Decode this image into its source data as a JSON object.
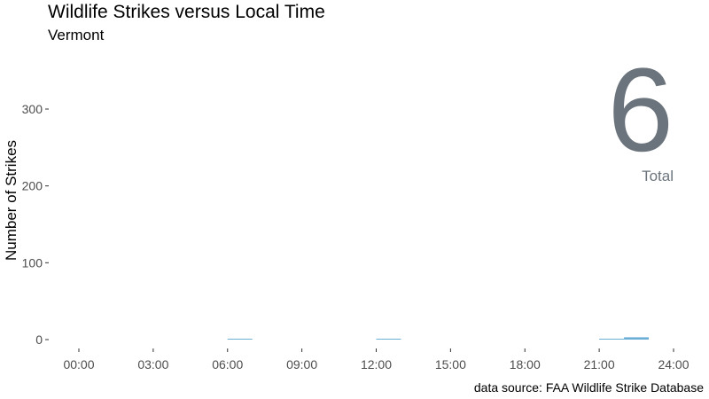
{
  "chart_data": {
    "type": "bar",
    "title": "Wildlife Strikes versus Local Time",
    "subtitle": "Vermont",
    "xlabel": "",
    "ylabel": "Number of Strikes",
    "caption": "data source: FAA Wildlife Strike Database",
    "x_ticks": [
      "00:00",
      "03:00",
      "06:00",
      "09:00",
      "12:00",
      "15:00",
      "18:00",
      "21:00",
      "24:00"
    ],
    "y_ticks": [
      "0",
      "100",
      "200",
      "300"
    ],
    "xlim": [
      0,
      24
    ],
    "ylim": [
      -15,
      375
    ],
    "bars": [
      {
        "start": 6,
        "end": 7,
        "value": 1
      },
      {
        "start": 12,
        "end": 13,
        "value": 1
      },
      {
        "start": 21,
        "end": 22,
        "value": 1
      },
      {
        "start": 22,
        "end": 23,
        "value": 3
      }
    ],
    "bar_color": "#6baed6",
    "grid": false,
    "total_value": "6",
    "total_label": "Total"
  }
}
